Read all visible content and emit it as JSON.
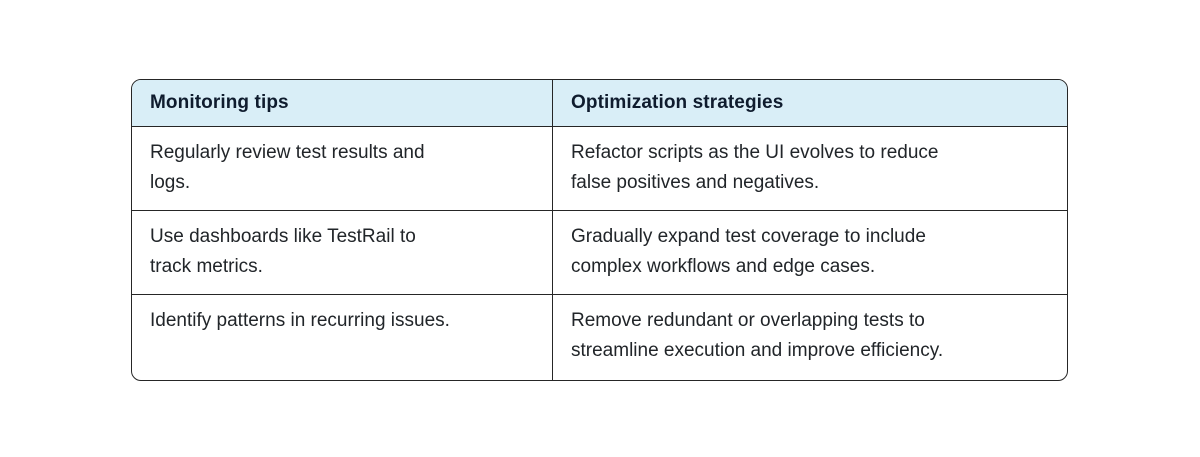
{
  "table": {
    "headers": [
      "Monitoring tips",
      "Optimization strategies"
    ],
    "rows": [
      [
        "Regularly review test results and\nlogs.",
        "Refactor scripts as the UI evolves to reduce\nfalse positives and negatives."
      ],
      [
        "Use dashboards like TestRail to\ntrack metrics.",
        "Gradually expand test coverage to include\ncomplex workflows and edge cases."
      ],
      [
        "Identify patterns in recurring issues.",
        "Remove redundant or overlapping tests to\nstreamline execution and improve efficiency."
      ]
    ]
  },
  "theme": {
    "colors": {
      "page-bg": "#ffffff",
      "header-bg": "#d9eef7",
      "border-color": "#262626",
      "header-text": "#0f1c2e",
      "body-text": "#212529"
    }
  }
}
